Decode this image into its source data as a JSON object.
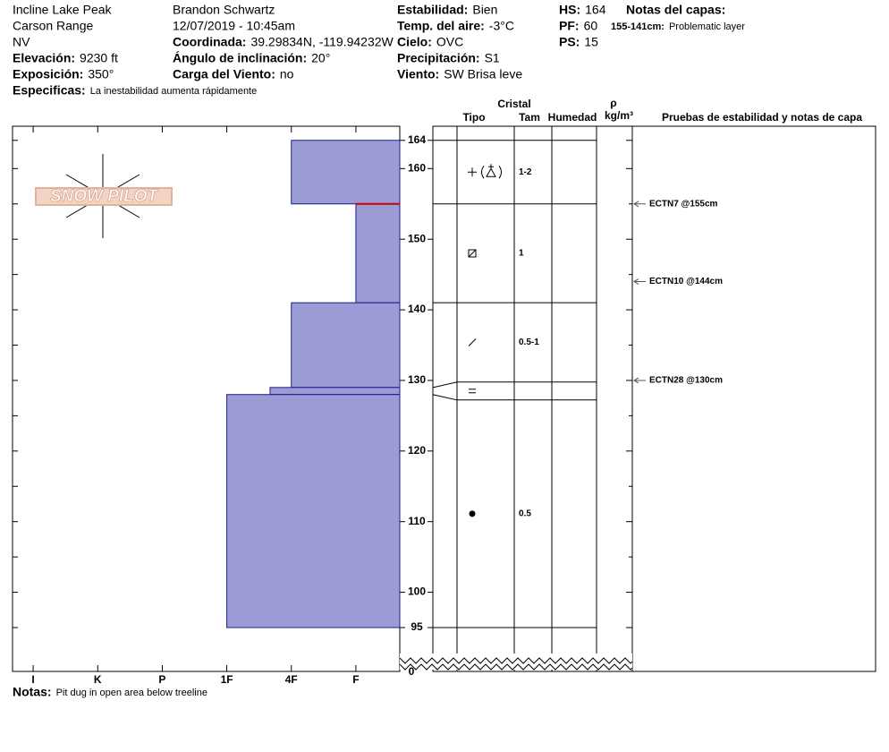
{
  "header": {
    "columns": [
      [
        {
          "text": "Incline Lake Peak"
        },
        {
          "text": "Carson Range"
        },
        {
          "text": "NV"
        },
        {
          "label": "Elevación:",
          "value": "9230 ft"
        },
        {
          "label": "Exposición:",
          "value": "350°"
        }
      ],
      [
        {
          "text": "Brandon Schwartz"
        },
        {
          "text": "12/07/2019 - 10:45am"
        },
        {
          "label": "Coordinada:",
          "value": "39.29834N, -119.94232W"
        },
        {
          "label": "Ángulo de inclinación:",
          "value": "20°"
        },
        {
          "label": "Carga del Viento:",
          "value": "no"
        }
      ],
      [
        {
          "label": "Estabilidad:",
          "value": "Bien"
        },
        {
          "label": "Temp. del aire:",
          "value": "-3°C"
        },
        {
          "label": "Cielo:",
          "value": "OVC"
        },
        {
          "label": "Precipitación:",
          "value": "S1"
        },
        {
          "label": "Viento:",
          "value": "SW Brisa leve"
        }
      ],
      [
        {
          "label": "HS:",
          "value": "164"
        },
        {
          "label": "PF:",
          "value": "60"
        },
        {
          "label": "PS:",
          "value": "15"
        }
      ]
    ],
    "specifics": {
      "label": "Especificas:",
      "value": "La inestabilidad aumenta rápidamente"
    },
    "layer_notes": {
      "title": "Notas del capas:",
      "items": [
        {
          "range": "155-141cm:",
          "text": "Problematic layer"
        }
      ]
    }
  },
  "logo": "SNOW PILOT",
  "chart_data": {
    "type": "profile",
    "ylim": [
      95,
      166
    ],
    "yticks": [
      164,
      160,
      150,
      140,
      130,
      120,
      110,
      100,
      95
    ],
    "yticks_minor": [
      155,
      145,
      135,
      125,
      115,
      105
    ],
    "break_tick": 0,
    "xlim": [
      6.32,
      0.32
    ],
    "xticks": [
      {
        "value": 6,
        "label": "I"
      },
      {
        "value": 5,
        "label": "K"
      },
      {
        "value": 4,
        "label": "P"
      },
      {
        "value": 3,
        "label": "1F"
      },
      {
        "value": 2,
        "label": "4F"
      },
      {
        "value": 1,
        "label": "F"
      }
    ],
    "color": "#9b9bd6",
    "edge_color": "#1c1c8a",
    "flag_color": "#cc0000",
    "layers": [
      {
        "top": 164,
        "bottom": 155,
        "hardness": 2,
        "size": "1-2"
      },
      {
        "top": 155,
        "bottom": 141,
        "hardness": 1,
        "size": "1",
        "flagged": true
      },
      {
        "top": 141,
        "bottom": 129,
        "hardness": 2,
        "size": "0.5-1"
      },
      {
        "top": 129,
        "bottom": 128,
        "hardness": 2.33
      },
      {
        "top": 128,
        "bottom": 95,
        "hardness": 3,
        "size": "0.5"
      }
    ],
    "columns": {
      "crystal": "Cristal",
      "type": "Tipo",
      "size": "Tam",
      "moisture": "Humedad",
      "density_symbol": "ρ",
      "density_unit": "kg/m³",
      "tests": "Pruebas de estabilidad y notas de capa"
    },
    "tests": [
      {
        "label": "ECTN7 @155cm",
        "depth": 155
      },
      {
        "label": "ECTN10 @144cm",
        "depth": 144
      },
      {
        "label": "ECTN28 @130cm",
        "depth": 130
      }
    ]
  },
  "notes": {
    "label": "Notas:",
    "value": "Pit dug in open area below treeline"
  }
}
